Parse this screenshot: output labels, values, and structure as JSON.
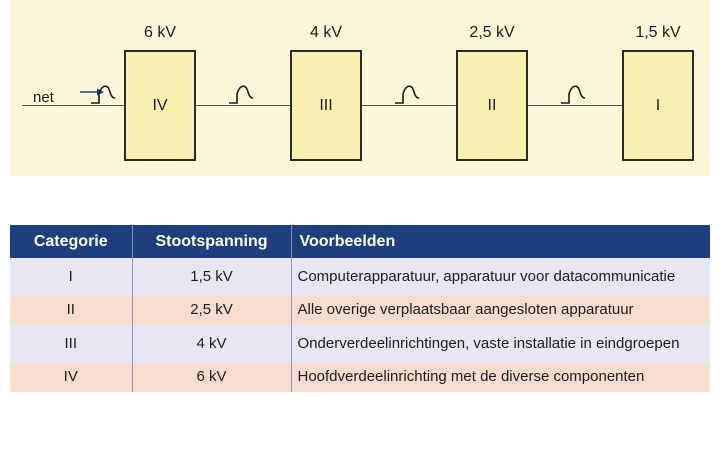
{
  "diagram": {
    "net_label": "net",
    "boxes": [
      {
        "category": "IV",
        "voltage": "6 kV"
      },
      {
        "category": "III",
        "voltage": "4 kV"
      },
      {
        "category": "II",
        "voltage": "2,5 kV"
      },
      {
        "category": "I",
        "voltage": "1,5 kV"
      }
    ],
    "icons": [
      "arrow-icon",
      "surge-pulse-icon"
    ],
    "colors": {
      "background": "#fcf7d9",
      "box_fill": "#f8f0b0"
    }
  },
  "table": {
    "headers": [
      "Categorie",
      "Stootspanning",
      "Voorbeelden"
    ],
    "rows": [
      {
        "category": "I",
        "voltage": "1,5 kV",
        "examples": "Computerapparatuur, apparatuur voor datacommunicatie"
      },
      {
        "category": "II",
        "voltage": "2,5 kV",
        "examples": "Alle overige verplaatsbaar aangesloten apparatuur"
      },
      {
        "category": "III",
        "voltage": "4 kV",
        "examples": "Onderverdeelinrichtingen, vaste installatie in eindgroepen"
      },
      {
        "category": "IV",
        "voltage": "6 kV",
        "examples": "Hoofdverdeelinrichting met de diverse componenten"
      }
    ],
    "colors": {
      "header": "#1e3f7d",
      "row_alt_1": "#e9e6f3",
      "row_alt_2": "#f8dcd0"
    }
  }
}
